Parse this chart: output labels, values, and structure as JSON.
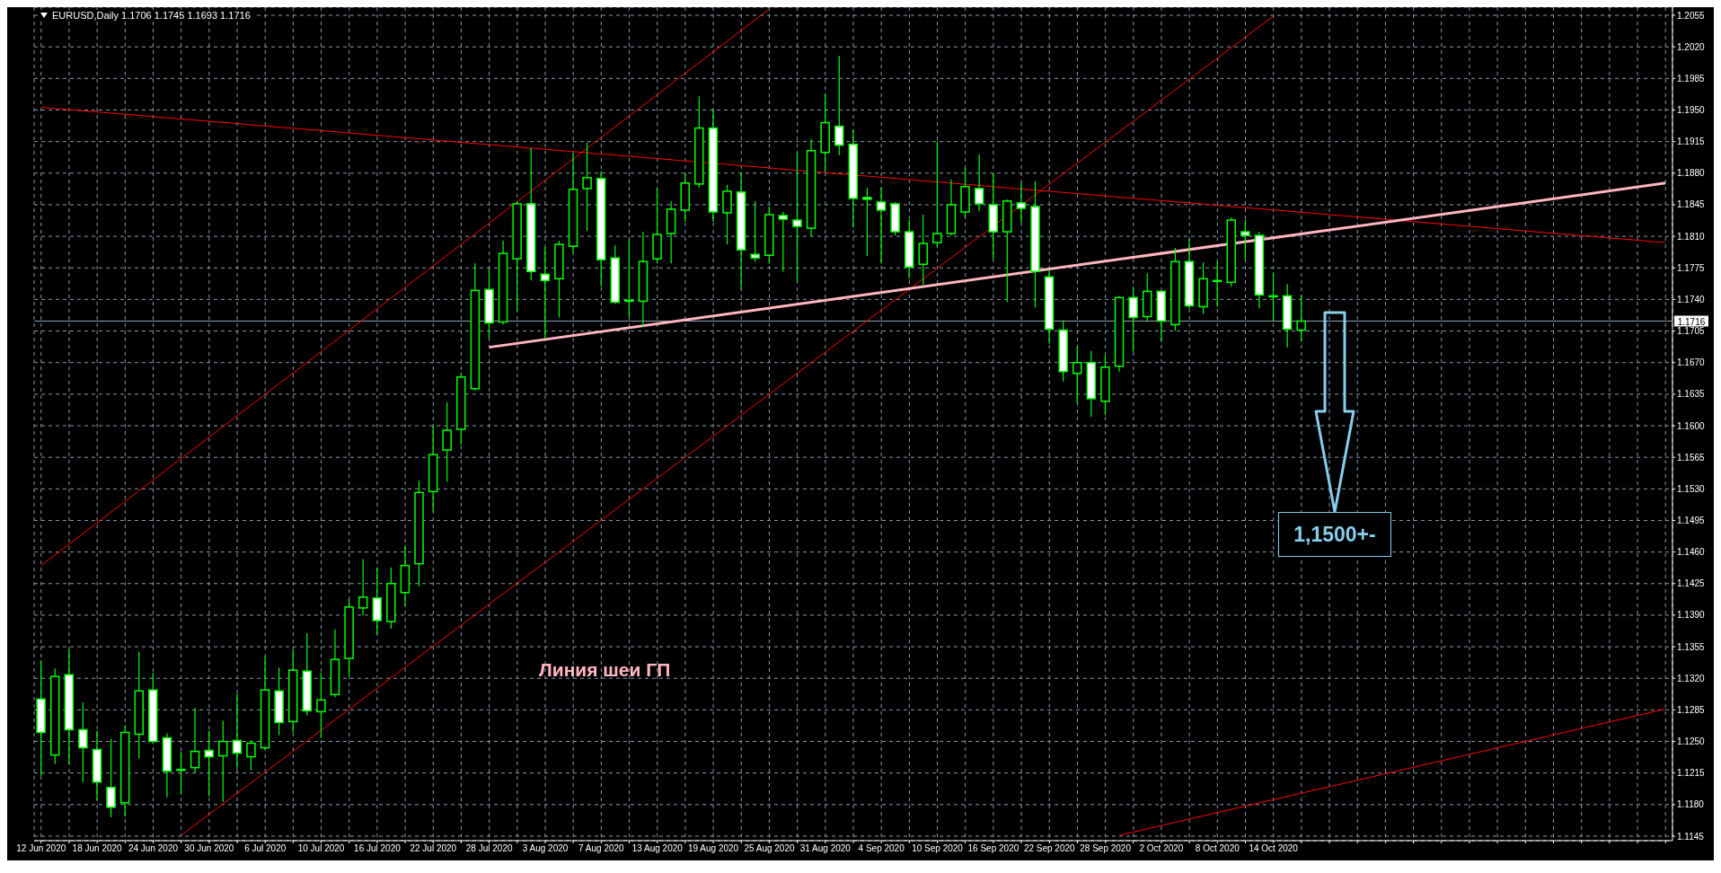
{
  "chart_data": {
    "type": "candlestick",
    "title": "EURUSD,Daily  1.1706 1.1745 1.1693 1.1716",
    "color": "#00ff00",
    "categories": [
      "12 Jun 2020",
      null,
      null,
      null,
      "18 Jun 2020",
      null,
      null,
      null,
      "24 Jun 2020",
      null,
      null,
      null,
      "30 Jun 2020",
      null,
      null,
      null,
      "6 Jul 2020",
      null,
      null,
      null,
      "10 Jul 2020",
      null,
      null,
      null,
      "16 Jul 2020",
      null,
      null,
      null,
      "22 Jul 2020",
      null,
      null,
      null,
      "28 Jul 2020",
      null,
      null,
      null,
      "3 Aug 2020",
      null,
      null,
      null,
      "7 Aug 2020",
      null,
      null,
      null,
      "13 Aug 2020",
      null,
      null,
      null,
      "19 Aug 2020",
      null,
      null,
      null,
      "25 Aug 2020",
      null,
      null,
      null,
      "31 Aug 2020",
      null,
      null,
      null,
      "4 Sep 2020",
      null,
      null,
      null,
      "10 Sep 2020",
      null,
      null,
      null,
      "16 Sep 2020",
      null,
      null,
      null,
      "22 Sep 2020",
      null,
      null,
      null,
      "28 Sep 2020",
      null,
      null,
      null,
      "2 Oct 2020",
      null,
      null,
      null,
      "8 Oct 2020",
      null,
      null,
      null,
      "14 Oct 2020",
      null,
      null,
      null,
      null,
      null,
      null,
      null,
      null,
      null,
      null,
      null,
      null,
      null,
      null,
      null,
      null,
      null,
      null,
      null,
      null,
      null,
      null,
      null,
      null,
      null,
      null,
      null,
      null
    ],
    "ohlc": [
      [
        1.1297,
        1.134,
        1.1212,
        1.126
      ],
      [
        1.1235,
        1.1331,
        1.1225,
        1.1322
      ],
      [
        1.1324,
        1.1352,
        1.1225,
        1.1263
      ],
      [
        1.1263,
        1.1293,
        1.1205,
        1.1243
      ],
      [
        1.1241,
        1.1262,
        1.1185,
        1.1205
      ],
      [
        1.1199,
        1.1253,
        1.1166,
        1.1177
      ],
      [
        1.1182,
        1.1268,
        1.1167,
        1.126
      ],
      [
        1.1258,
        1.1349,
        1.1231,
        1.1306
      ],
      [
        1.1307,
        1.1326,
        1.1247,
        1.125
      ],
      [
        1.1254,
        1.1259,
        1.1188,
        1.1217
      ],
      [
        1.1218,
        1.1239,
        1.1191,
        1.1219
      ],
      [
        1.1221,
        1.1287,
        1.1215,
        1.1239
      ],
      [
        1.124,
        1.1262,
        1.1189,
        1.1233
      ],
      [
        1.1234,
        1.1273,
        1.1183,
        1.125
      ],
      [
        1.1251,
        1.1303,
        1.122,
        1.1237
      ],
      [
        1.1233,
        1.1251,
        1.1218,
        1.1248
      ],
      [
        1.1243,
        1.1344,
        1.1241,
        1.1307
      ],
      [
        1.1306,
        1.1332,
        1.1257,
        1.1271
      ],
      [
        1.1272,
        1.1351,
        1.126,
        1.1329
      ],
      [
        1.1328,
        1.137,
        1.1279,
        1.1284
      ],
      [
        1.1283,
        1.1326,
        1.1254,
        1.1296
      ],
      [
        1.1302,
        1.1374,
        1.1299,
        1.1341
      ],
      [
        1.1342,
        1.1408,
        1.1323,
        1.1399
      ],
      [
        1.1398,
        1.1452,
        1.139,
        1.141
      ],
      [
        1.1409,
        1.1443,
        1.1369,
        1.1384
      ],
      [
        1.1383,
        1.1443,
        1.1375,
        1.1425
      ],
      [
        1.1415,
        1.1467,
        1.14,
        1.1445
      ],
      [
        1.1447,
        1.1539,
        1.1422,
        1.1526
      ],
      [
        1.1527,
        1.16,
        1.1505,
        1.1568
      ],
      [
        1.1573,
        1.1626,
        1.1538,
        1.1595
      ],
      [
        1.1596,
        1.1659,
        1.1579,
        1.1654
      ],
      [
        1.1641,
        1.178,
        1.1639,
        1.175
      ],
      [
        1.1751,
        1.1774,
        1.1697,
        1.1714
      ],
      [
        1.1715,
        1.1805,
        1.1712,
        1.1791
      ],
      [
        1.1785,
        1.1849,
        1.1727,
        1.1846
      ],
      [
        1.1846,
        1.1908,
        1.1761,
        1.1771
      ],
      [
        1.1768,
        1.1798,
        1.1697,
        1.1761
      ],
      [
        1.1763,
        1.1805,
        1.172,
        1.1801
      ],
      [
        1.1799,
        1.1902,
        1.1792,
        1.1862
      ],
      [
        1.1863,
        1.1914,
        1.1816,
        1.1875
      ],
      [
        1.1874,
        1.1882,
        1.1754,
        1.1784
      ],
      [
        1.1786,
        1.18,
        1.1735,
        1.1737
      ],
      [
        1.1739,
        1.1806,
        1.1721,
        1.1738
      ],
      [
        1.1738,
        1.1815,
        1.171,
        1.1782
      ],
      [
        1.1785,
        1.1863,
        1.178,
        1.1812
      ],
      [
        1.1813,
        1.1849,
        1.178,
        1.184
      ],
      [
        1.1839,
        1.188,
        1.1826,
        1.1869
      ],
      [
        1.1868,
        1.1965,
        1.1864,
        1.193
      ],
      [
        1.193,
        1.1951,
        1.1826,
        1.1837
      ],
      [
        1.1836,
        1.1867,
        1.1801,
        1.186
      ],
      [
        1.1859,
        1.1881,
        1.1751,
        1.1795
      ],
      [
        1.179,
        1.1849,
        1.1782,
        1.1786
      ],
      [
        1.1789,
        1.1843,
        1.178,
        1.1834
      ],
      [
        1.1833,
        1.1837,
        1.1771,
        1.1829
      ],
      [
        1.1828,
        1.1903,
        1.176,
        1.1821
      ],
      [
        1.1819,
        1.1918,
        1.181,
        1.1905
      ],
      [
        1.1903,
        1.1968,
        1.1881,
        1.1936
      ],
      [
        1.1932,
        1.201,
        1.19,
        1.1911
      ],
      [
        1.1912,
        1.1928,
        1.182,
        1.1852
      ],
      [
        1.1853,
        1.1864,
        1.1788,
        1.1851
      ],
      [
        1.1848,
        1.1864,
        1.178,
        1.1839
      ],
      [
        1.1846,
        1.1848,
        1.1811,
        1.1815
      ],
      [
        1.1815,
        1.1828,
        1.1763,
        1.1776
      ],
      [
        1.1779,
        1.1834,
        1.1756,
        1.1802
      ],
      [
        1.1803,
        1.1915,
        1.1798,
        1.1813
      ],
      [
        1.1813,
        1.1873,
        1.1811,
        1.1845
      ],
      [
        1.1837,
        1.1886,
        1.1831,
        1.1865
      ],
      [
        1.1863,
        1.1901,
        1.1838,
        1.1846
      ],
      [
        1.1845,
        1.188,
        1.1785,
        1.1815
      ],
      [
        1.1815,
        1.1851,
        1.1737,
        1.1849
      ],
      [
        1.1847,
        1.1869,
        1.1825,
        1.1841
      ],
      [
        1.1843,
        1.1871,
        1.1731,
        1.1771
      ],
      [
        1.1765,
        1.1773,
        1.1691,
        1.1707
      ],
      [
        1.1706,
        1.1717,
        1.1649,
        1.166
      ],
      [
        1.1658,
        1.1688,
        1.1625,
        1.167
      ],
      [
        1.167,
        1.1683,
        1.161,
        1.163
      ],
      [
        1.1627,
        1.1678,
        1.1612,
        1.1665
      ],
      [
        1.1666,
        1.1744,
        1.166,
        1.1742
      ],
      [
        1.1742,
        1.1754,
        1.1682,
        1.172
      ],
      [
        1.1721,
        1.1769,
        1.1716,
        1.1749
      ],
      [
        1.1749,
        1.175,
        1.1693,
        1.1716
      ],
      [
        1.1712,
        1.1797,
        1.1705,
        1.1782
      ],
      [
        1.1782,
        1.1807,
        1.173,
        1.1733
      ],
      [
        1.1732,
        1.1781,
        1.1724,
        1.1763
      ],
      [
        1.176,
        1.1782,
        1.1732,
        1.1761
      ],
      [
        1.1759,
        1.1831,
        1.1754,
        1.1828
      ],
      [
        1.1815,
        1.1828,
        1.1785,
        1.1811
      ],
      [
        1.1811,
        1.1815,
        1.173,
        1.1745
      ],
      [
        1.1743,
        1.177,
        1.1716,
        1.1744
      ],
      [
        1.1744,
        1.1757,
        1.1687,
        1.1707
      ],
      [
        1.1706,
        1.1745,
        1.1693,
        1.1716
      ],
      null,
      null,
      null,
      null,
      null,
      null,
      null,
      null,
      null,
      null,
      null,
      null,
      null,
      null,
      null,
      null,
      null,
      null,
      null,
      null,
      null,
      null,
      null,
      null,
      null,
      null
    ],
    "series": [
      {
        "type": "line",
        "color": "#ff0000",
        "values": [
          1.1953,
          null,
          null,
          null,
          null,
          null,
          null,
          null,
          null,
          null,
          null,
          null,
          null,
          null,
          null,
          null,
          null,
          null,
          null,
          null,
          null,
          null,
          null,
          null,
          null,
          null,
          null,
          null,
          null,
          null,
          null,
          null,
          null,
          null,
          null,
          null,
          null,
          null,
          null,
          null,
          null,
          null,
          null,
          null,
          null,
          null,
          null,
          null,
          null,
          null,
          null,
          null,
          null,
          null,
          null,
          null,
          null,
          null,
          null,
          null,
          null,
          null,
          null,
          null,
          null,
          null,
          null,
          null,
          null,
          null,
          null,
          null,
          null,
          null,
          null,
          null,
          null,
          null,
          null,
          null,
          null,
          null,
          null,
          null,
          null,
          null,
          null,
          null,
          null,
          null,
          null,
          null,
          null,
          null,
          null,
          null,
          null,
          null,
          null,
          null,
          null,
          null,
          null,
          null,
          null,
          null,
          null,
          null,
          null,
          null,
          null,
          null,
          null,
          null,
          null,
          null,
          1.1803
        ]
      },
      {
        "type": "line",
        "color": "#ff0000",
        "values": [
          1.1445,
          null,
          null,
          null,
          null,
          null,
          null,
          null,
          null,
          null,
          null,
          null,
          null,
          null,
          null,
          null,
          null,
          null,
          null,
          null,
          null,
          null,
          null,
          null,
          null,
          null,
          null,
          null,
          null,
          null,
          null,
          null,
          null,
          null,
          null,
          null,
          null,
          null,
          null,
          null,
          null,
          null,
          null,
          null,
          null,
          null,
          null,
          null,
          null,
          null,
          null,
          null,
          1.2062,
          null,
          null,
          null,
          null,
          null,
          null,
          null,
          null,
          null,
          null,
          null,
          null,
          null,
          null,
          null,
          null,
          null,
          null,
          null,
          null,
          null,
          null,
          null,
          null,
          null,
          null,
          null,
          null,
          null,
          null,
          null,
          null,
          null,
          null,
          null,
          null,
          null,
          null,
          null,
          null,
          null,
          null,
          null,
          null,
          null,
          null,
          null,
          null,
          null,
          null,
          null,
          null,
          null,
          null,
          null,
          null,
          null,
          null,
          null,
          null,
          null,
          null,
          null,
          null
        ]
      },
      {
        "type": "line",
        "color": "#ff0000",
        "values": [
          null,
          null,
          null,
          null,
          null,
          null,
          null,
          null,
          null,
          null,
          1.1146,
          null,
          null,
          null,
          null,
          null,
          null,
          null,
          null,
          null,
          null,
          null,
          null,
          null,
          null,
          null,
          null,
          null,
          null,
          null,
          null,
          null,
          null,
          null,
          null,
          null,
          null,
          null,
          null,
          null,
          null,
          null,
          null,
          null,
          null,
          null,
          null,
          null,
          null,
          null,
          null,
          null,
          null,
          null,
          null,
          null,
          null,
          null,
          null,
          null,
          null,
          null,
          null,
          null,
          null,
          null,
          null,
          null,
          null,
          null,
          null,
          null,
          null,
          null,
          null,
          null,
          null,
          null,
          null,
          null,
          null,
          null,
          null,
          null,
          null,
          null,
          null,
          null,
          1.2054,
          null,
          null,
          null,
          null,
          null,
          null,
          null,
          null,
          null,
          null,
          null,
          null,
          null,
          null,
          null,
          null,
          null,
          null,
          null,
          null,
          null,
          null,
          null,
          null,
          null,
          null,
          null,
          null
        ]
      },
      {
        "type": "line",
        "color": "#ff0000",
        "values": [
          null,
          null,
          null,
          null,
          null,
          null,
          null,
          null,
          null,
          null,
          null,
          null,
          null,
          null,
          null,
          null,
          null,
          null,
          null,
          null,
          null,
          null,
          null,
          null,
          null,
          null,
          null,
          null,
          null,
          null,
          null,
          null,
          null,
          null,
          null,
          null,
          null,
          null,
          null,
          null,
          null,
          null,
          null,
          null,
          null,
          null,
          null,
          null,
          null,
          null,
          null,
          null,
          null,
          null,
          null,
          null,
          null,
          null,
          null,
          null,
          null,
          null,
          null,
          null,
          null,
          null,
          null,
          null,
          null,
          null,
          null,
          null,
          null,
          null,
          null,
          null,
          null,
          1.1146,
          null,
          null,
          null,
          null,
          null,
          null,
          null,
          null,
          null,
          null,
          null,
          null,
          null,
          null,
          null,
          null,
          null,
          null,
          null,
          null,
          null,
          null,
          null,
          null,
          null,
          null,
          null,
          null,
          null,
          null,
          null,
          null,
          null,
          null,
          null,
          null,
          null,
          null,
          1.1286
        ]
      },
      {
        "type": "line",
        "color": "#ffb6c1",
        "values": [
          null,
          null,
          null,
          null,
          null,
          null,
          null,
          null,
          null,
          null,
          null,
          null,
          null,
          null,
          null,
          null,
          null,
          null,
          null,
          null,
          null,
          null,
          null,
          null,
          null,
          null,
          null,
          null,
          null,
          null,
          null,
          null,
          1.1687,
          null,
          null,
          null,
          null,
          null,
          null,
          null,
          null,
          null,
          null,
          null,
          null,
          null,
          null,
          null,
          null,
          null,
          null,
          null,
          null,
          null,
          null,
          null,
          null,
          null,
          null,
          null,
          null,
          null,
          null,
          null,
          null,
          null,
          null,
          null,
          null,
          null,
          null,
          null,
          null,
          null,
          null,
          null,
          null,
          null,
          null,
          null,
          null,
          null,
          null,
          null,
          null,
          null,
          null,
          null,
          null,
          null,
          null,
          null,
          null,
          null,
          null,
          null,
          null,
          null,
          null,
          null,
          null,
          null,
          null,
          null,
          null,
          null,
          null,
          null,
          null,
          null,
          null,
          null,
          null,
          null,
          null,
          null,
          1.1869
        ]
      }
    ],
    "ylim": [
      1.114,
      1.2064
    ],
    "yticks": [
      1.1145,
      {
        "value": 1.118,
        "label": "1.1180"
      },
      1.1215,
      {
        "value": 1.125,
        "label": "1.1250"
      },
      1.1285,
      {
        "value": 1.132,
        "label": "1.1320"
      },
      1.1355,
      {
        "value": 1.139,
        "label": "1.1390"
      },
      1.1425,
      {
        "value": 1.146,
        "label": "1.1460"
      },
      1.1495,
      {
        "value": 1.153,
        "label": "1.1530"
      },
      1.1565,
      {
        "value": 1.16,
        "label": "1.1600"
      },
      1.1635,
      {
        "value": 1.167,
        "label": "1.1670"
      },
      1.1705,
      {
        "value": 1.174,
        "label": "1.1740"
      },
      1.1775,
      {
        "value": 1.181,
        "label": "1.1810"
      },
      1.1845,
      {
        "value": 1.188,
        "label": "1.1880"
      },
      1.1915,
      {
        "value": 1.195,
        "label": "1.1950"
      },
      1.1985,
      {
        "value": 1.202,
        "label": "1.2020"
      },
      1.2055
    ],
    "ref_lines": [
      {
        "axis": "y",
        "value": 1.1716,
        "label": "1.1716",
        "color": "#8fa3b5"
      }
    ],
    "annotations": [
      "Линия шеи ГП",
      "1,1500+-"
    ],
    "grid": true
  }
}
